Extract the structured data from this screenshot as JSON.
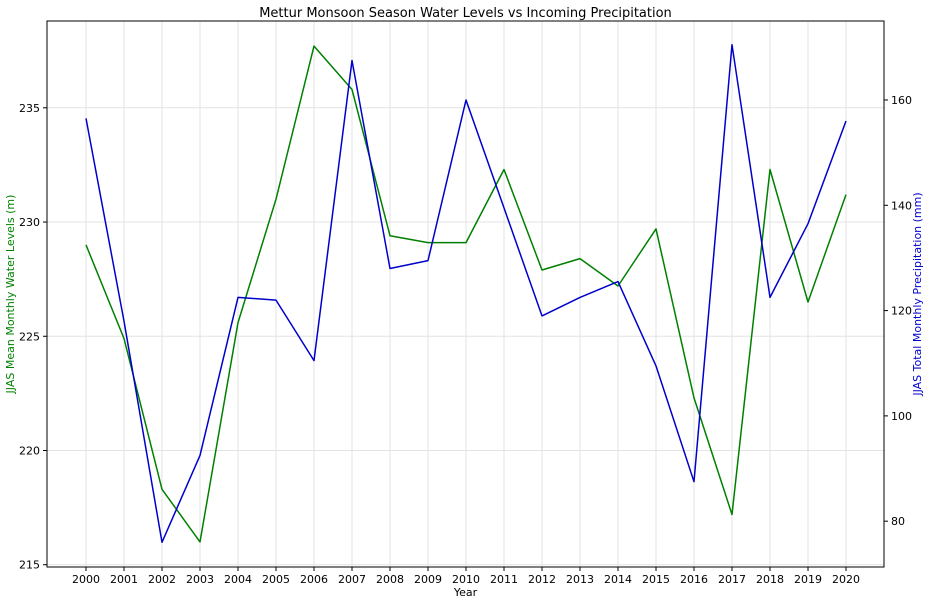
{
  "chart_data": {
    "type": "line",
    "title": "Mettur Monsoon Season Water Levels vs Incoming Precipitation",
    "xlabel": "Year",
    "x": [
      "2000",
      "2001",
      "2002",
      "2003",
      "2004",
      "2005",
      "2006",
      "2007",
      "2008",
      "2009",
      "2010",
      "2011",
      "2012",
      "2013",
      "2014",
      "2015",
      "2016",
      "2017",
      "2018",
      "2019",
      "2020"
    ],
    "grid": true,
    "series": [
      {
        "name": "JJAS Mean Monthly Water Levels (m)",
        "axis": "left",
        "color": "#008000",
        "values": [
          229.0,
          224.9,
          218.3,
          216.0,
          225.6,
          231.0,
          237.7,
          235.8,
          229.4,
          229.1,
          229.1,
          232.3,
          227.9,
          228.4,
          227.2,
          229.7,
          222.3,
          217.2,
          232.3,
          226.5,
          231.2
        ]
      },
      {
        "name": "JJAS Total Monthly Precipitation (mm)",
        "axis": "right",
        "color": "#0000cc",
        "values": [
          156.5,
          118.0,
          76.0,
          92.5,
          122.5,
          122.0,
          110.5,
          167.5,
          128.0,
          129.5,
          160.0,
          139.5,
          119.0,
          122.5,
          125.5,
          109.5,
          87.5,
          170.5,
          122.5,
          136.5,
          156.0
        ]
      }
    ],
    "yleft": {
      "label": "JJAS Mean Monthly Water Levels (m)",
      "ylim": [
        214.9,
        238.8
      ],
      "ticks": [
        215,
        220,
        225,
        230,
        235
      ]
    },
    "yright": {
      "label": "JJAS Total Monthly Precipitation (mm)",
      "ylim": [
        71.3,
        175.0
      ],
      "ticks": [
        80,
        100,
        120,
        140,
        160
      ]
    }
  }
}
